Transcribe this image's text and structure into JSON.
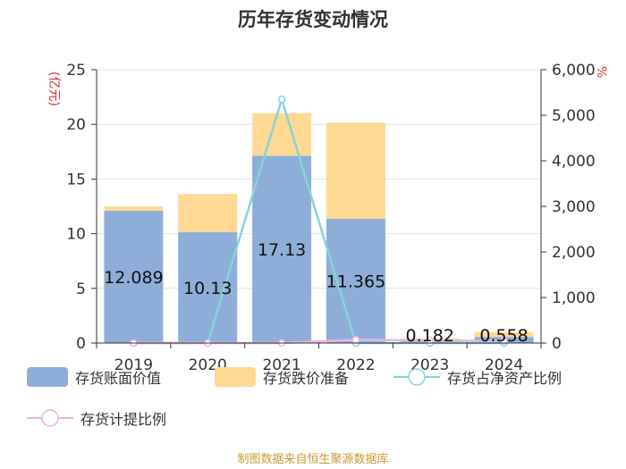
{
  "chart_data": {
    "type": "bar",
    "title": "历年存货变动情况",
    "categories": [
      "2019",
      "2020",
      "2021",
      "2022",
      "2023",
      "2024"
    ],
    "y_left": {
      "label": "(亿元)",
      "ticks": [
        "0",
        "5",
        "10",
        "15",
        "20",
        "25"
      ],
      "min": 0,
      "max": 25
    },
    "y_right": {
      "label": "%",
      "ticks": [
        "0",
        "1,000",
        "2,000",
        "3,000",
        "4,000",
        "5,000",
        "6,000"
      ],
      "min": 0,
      "max": 6000
    },
    "series": [
      {
        "name": "存货账面价值",
        "kind": "bar",
        "stack": "s",
        "axis": "left",
        "color": "#8eaed9",
        "values": [
          12.089,
          10.13,
          17.13,
          11.365,
          0.182,
          0.558
        ],
        "labels": [
          "12.089",
          "10.13",
          "17.13",
          "11.365",
          "0.182",
          "0.558"
        ]
      },
      {
        "name": "存货跌价准备",
        "kind": "bar",
        "stack": "s",
        "axis": "left",
        "color": "#ffd994",
        "values": [
          0.4,
          3.5,
          3.9,
          8.8,
          0.25,
          0.45
        ]
      },
      {
        "name": "存货占净资产比例",
        "kind": "line",
        "axis": "right",
        "color": "#86d3d8",
        "values": [
          0,
          0,
          5350,
          0,
          0,
          0
        ]
      },
      {
        "name": "存货计提比例",
        "kind": "line",
        "axis": "right",
        "color": "#e8b4dc",
        "values": [
          0,
          0,
          0,
          70,
          60,
          45
        ]
      }
    ],
    "grid": true,
    "legend": "bottom"
  },
  "source": "制图数据来自恒生聚源数据库"
}
